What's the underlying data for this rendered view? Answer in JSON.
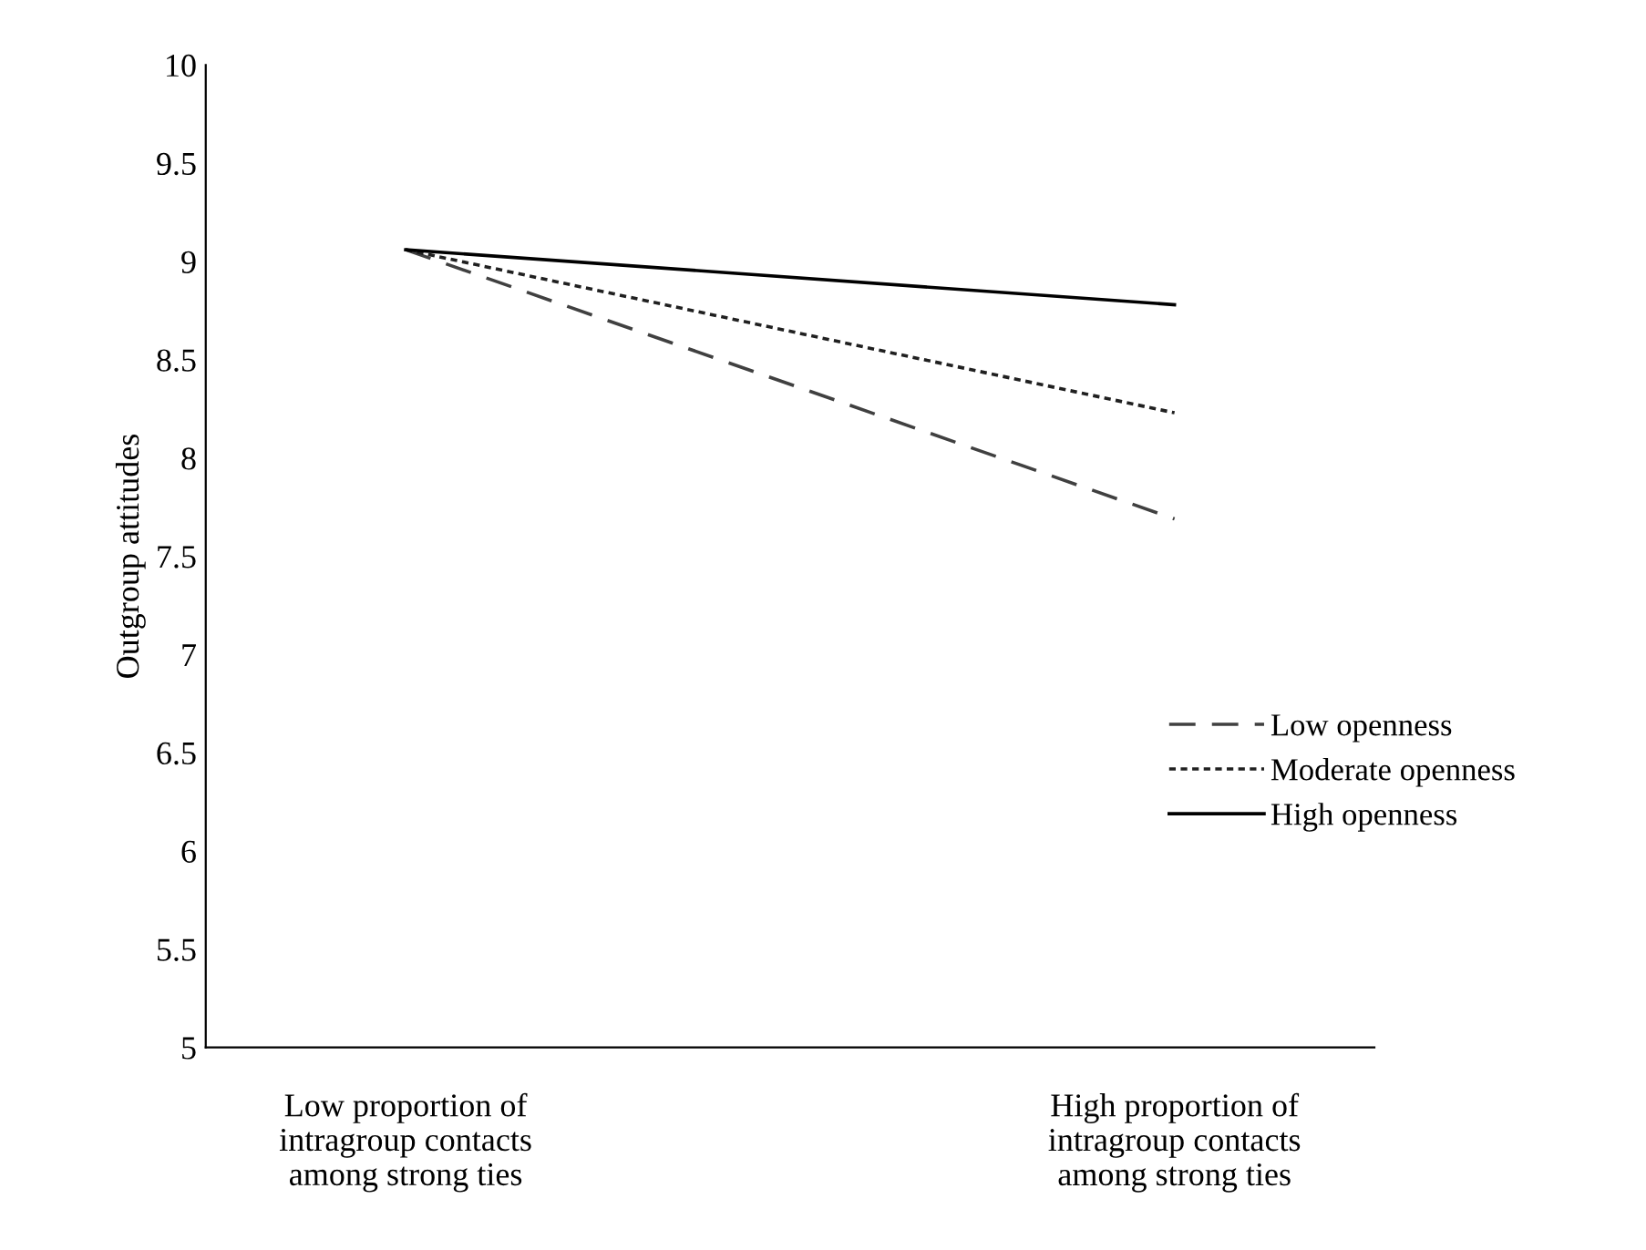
{
  "chart_data": {
    "type": "line",
    "ylabel": "Outgroup attitudes",
    "categories": [
      "Low proportion of\nintragroup contacts\namong strong ties",
      "High proportion of\nintragroup contacts\namong strong ties"
    ],
    "series": [
      {
        "name": "Low openness",
        "color": "#404040",
        "line_style": "dashed",
        "values": [
          9.06,
          7.69
        ]
      },
      {
        "name": "Moderate openness",
        "color": "#202020",
        "line_style": "dotted",
        "values": [
          9.06,
          8.23
        ]
      },
      {
        "name": "High openness",
        "color": "#000000",
        "line_style": "solid",
        "values": [
          9.06,
          8.78
        ]
      }
    ],
    "ylim": [
      5,
      10
    ],
    "yticks": [
      5,
      5.5,
      6,
      6.5,
      7,
      7.5,
      8,
      8.5,
      9,
      9.5,
      10
    ],
    "grid": false,
    "legend": "right",
    "marker": "none"
  }
}
